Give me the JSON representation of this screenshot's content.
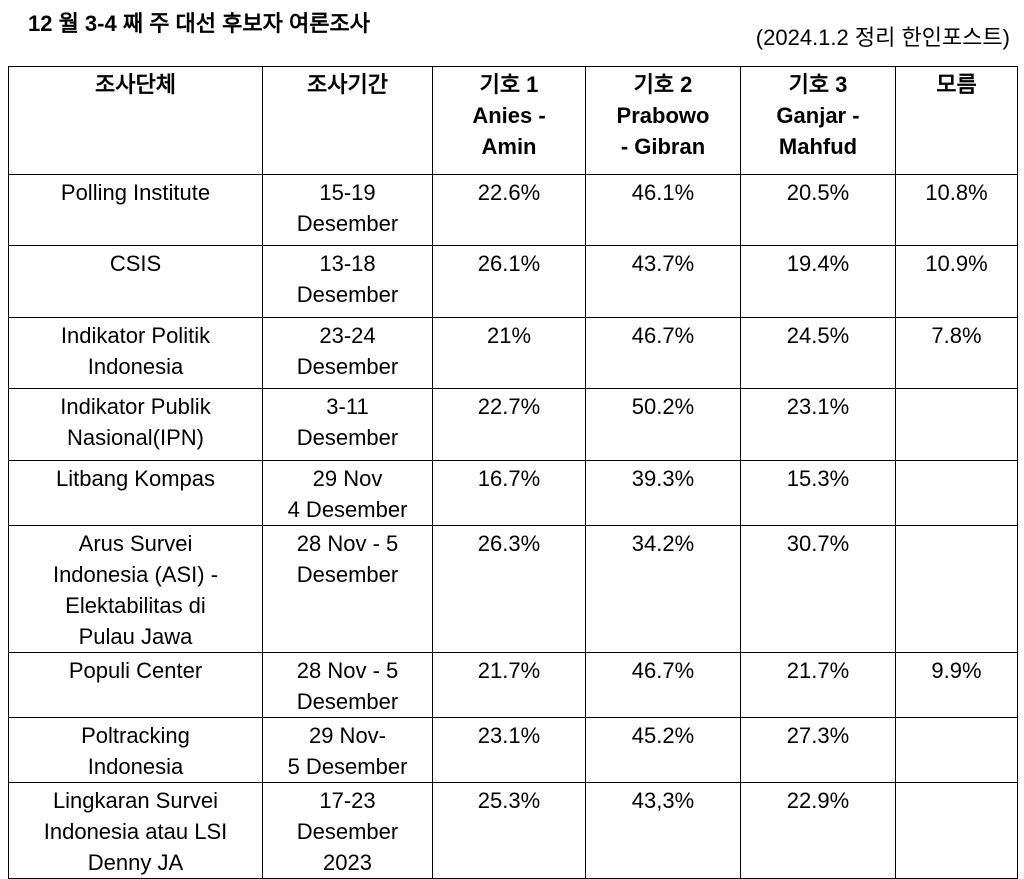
{
  "header": {
    "title": "12 월 3-4 째 주 대선 후보자 여론조사",
    "source": "(2024.1.2 정리 한인포스트)"
  },
  "table": {
    "columns": [
      "조사단체",
      "조사기간",
      "기호 1\nAnies -\nAmin",
      "기호 2\nPrabowo\n- Gibran",
      "기호 3\nGanjar -\nMahfud",
      "모름"
    ],
    "rows": [
      [
        "Polling Institute",
        "15-19\nDesember",
        "22.6%",
        "46.1%",
        "20.5%",
        "10.8%"
      ],
      [
        "CSIS",
        "13-18\nDesember",
        "26.1%",
        "43.7%",
        "19.4%",
        "10.9%"
      ],
      [
        "Indikator Politik\nIndonesia",
        "23-24\nDesember",
        "21%",
        "46.7%",
        "24.5%",
        "7.8%"
      ],
      [
        "Indikator Publik\nNasional(IPN)",
        "3-11\nDesember",
        "22.7%",
        "50.2%",
        "23.1%",
        null
      ],
      [
        "Litbang Kompas",
        "29 Nov\n4 Desember",
        "16.7%",
        "39.3%",
        "15.3%",
        null
      ],
      [
        "Arus Survei\nIndonesia (ASI) -\nElektabilitas di\nPulau Jawa",
        "28 Nov - 5\nDesember",
        "26.3%",
        "34.2%",
        "30.7%",
        null
      ],
      [
        "Populi Center",
        "28 Nov - 5\nDesember",
        "21.7%",
        "46.7%",
        "21.7%",
        "9.9%"
      ],
      [
        "Poltracking\nIndonesia",
        "29 Nov-\n5 Desember",
        "23.1%",
        "45.2%",
        "27.3%",
        null
      ],
      [
        "Lingkaran Survei\nIndonesia atau LSI\nDenny JA",
        "17-23\nDesember\n2023",
        "25.3%",
        "43,3%",
        "22.9%",
        null
      ]
    ]
  }
}
